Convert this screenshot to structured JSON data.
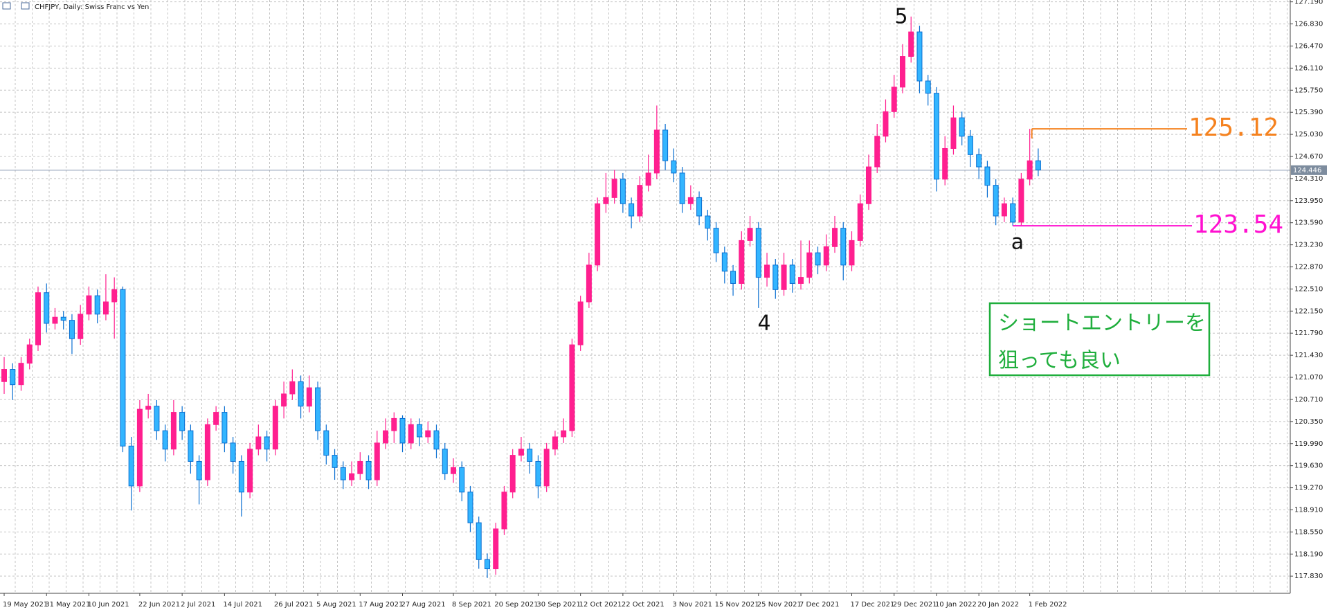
{
  "chart_data": {
    "type": "candlestick",
    "title": "CHFJPY, Daily:  Swiss Franc vs Yen",
    "categories": [
      "19 May 2021",
      null,
      null,
      null,
      null,
      "31 May 2021",
      null,
      null,
      null,
      null,
      "10 Jun 2021",
      null,
      null,
      null,
      null,
      null,
      "22 Jun 2021",
      null,
      null,
      null,
      null,
      "2 Jul 2021",
      null,
      null,
      null,
      null,
      "14 Jul 2021",
      null,
      null,
      null,
      null,
      null,
      "26 Jul 2021",
      null,
      null,
      null,
      null,
      "5 Aug 2021",
      null,
      null,
      null,
      null,
      "17 Aug 2021",
      null,
      null,
      null,
      null,
      "27 Aug 2021",
      null,
      null,
      null,
      null,
      null,
      "8 Sep 2021",
      null,
      null,
      null,
      null,
      "20 Sep 2021",
      null,
      null,
      null,
      null,
      "30 Sep 2021",
      null,
      null,
      null,
      null,
      "12 Oct 2021",
      null,
      null,
      null,
      null,
      "22 Oct 2021",
      null,
      null,
      null,
      null,
      null,
      "3 Nov 2021",
      null,
      null,
      null,
      null,
      "15 Nov 2021",
      null,
      null,
      null,
      null,
      "25 Nov 2021",
      null,
      null,
      null,
      null,
      "7 Dec 2021",
      null,
      null,
      null,
      null,
      null,
      "17 Dec 2021",
      null,
      null,
      null,
      null,
      "29 Dec 2021",
      null,
      null,
      null,
      null,
      "10 Jan 2022",
      null,
      null,
      null,
      null,
      "20 Jan 2022",
      null,
      null,
      null,
      null,
      null,
      "1 Feb 2022",
      null
    ],
    "open": [
      121.0,
      121.2,
      120.95,
      121.3,
      121.6,
      122.45,
      121.95,
      122.05,
      122.0,
      121.7,
      122.1,
      122.4,
      122.1,
      122.3,
      122.5,
      119.95,
      119.3,
      120.55,
      120.6,
      120.2,
      119.9,
      120.5,
      120.2,
      119.7,
      119.4,
      120.3,
      120.5,
      120.0,
      119.7,
      119.2,
      119.9,
      120.1,
      119.9,
      120.6,
      120.8,
      121.0,
      120.6,
      120.9,
      120.2,
      119.8,
      119.6,
      119.4,
      119.5,
      119.7,
      119.4,
      120.0,
      120.2,
      120.4,
      120.0,
      120.3,
      120.1,
      120.2,
      119.9,
      119.5,
      119.6,
      119.2,
      118.7,
      118.1,
      117.95,
      118.6,
      119.2,
      119.8,
      119.9,
      119.7,
      119.3,
      119.9,
      120.1,
      120.2,
      121.6,
      122.3,
      122.9,
      123.9,
      124.0,
      124.3,
      123.9,
      123.7,
      124.2,
      124.4,
      125.1,
      124.6,
      124.4,
      123.9,
      124.0,
      123.7,
      123.5,
      123.1,
      122.8,
      122.6,
      123.3,
      123.5,
      122.7,
      122.9,
      122.5,
      122.9,
      122.6,
      122.7,
      123.1,
      122.9,
      123.2,
      123.5,
      122.9,
      123.3,
      123.9,
      124.5,
      125.0,
      125.4,
      125.8,
      126.3,
      126.7,
      125.9,
      125.7,
      124.3,
      124.8,
      125.3,
      125.0,
      124.7,
      124.5,
      124.2,
      123.7,
      123.9,
      123.6,
      124.3,
      124.6
    ],
    "high": [
      121.4,
      121.3,
      121.4,
      121.7,
      122.55,
      122.6,
      122.2,
      122.15,
      122.1,
      122.25,
      122.55,
      122.5,
      122.75,
      122.7,
      122.55,
      120.1,
      120.7,
      120.8,
      120.7,
      120.3,
      120.7,
      120.6,
      120.3,
      119.8,
      120.4,
      120.6,
      120.6,
      120.1,
      119.8,
      120.0,
      120.3,
      120.2,
      120.7,
      121.0,
      121.2,
      121.1,
      121.1,
      121.0,
      120.3,
      119.9,
      119.7,
      119.7,
      119.85,
      119.8,
      120.2,
      120.4,
      120.5,
      120.45,
      120.4,
      120.4,
      120.35,
      120.3,
      120.0,
      119.75,
      119.7,
      119.3,
      118.8,
      118.2,
      118.7,
      119.3,
      119.9,
      120.1,
      120.0,
      119.8,
      120.0,
      120.2,
      120.4,
      121.7,
      122.4,
      123.1,
      124.0,
      124.4,
      124.45,
      124.4,
      124.0,
      124.35,
      124.7,
      125.5,
      125.2,
      124.8,
      124.5,
      124.2,
      124.1,
      123.8,
      123.6,
      123.2,
      122.9,
      123.45,
      123.7,
      123.6,
      123.1,
      123.0,
      123.1,
      123.0,
      123.3,
      123.3,
      123.2,
      123.4,
      123.7,
      123.6,
      123.45,
      124.05,
      124.7,
      125.2,
      125.6,
      126.0,
      126.5,
      126.95,
      126.8,
      126.0,
      125.8,
      125.0,
      125.5,
      125.4,
      125.1,
      124.8,
      124.6,
      124.3,
      124.0,
      124.0,
      124.4,
      125.12,
      124.8
    ],
    "low": [
      120.8,
      120.7,
      120.85,
      121.2,
      121.5,
      121.8,
      121.85,
      121.85,
      121.45,
      121.6,
      122.0,
      121.95,
      122.0,
      121.7,
      119.85,
      118.9,
      119.2,
      120.4,
      120.05,
      119.7,
      119.8,
      120.05,
      119.5,
      119.0,
      119.3,
      120.2,
      119.85,
      119.5,
      118.8,
      119.1,
      119.8,
      119.7,
      119.8,
      120.4,
      120.7,
      120.4,
      120.5,
      120.05,
      119.65,
      119.4,
      119.25,
      119.3,
      119.4,
      119.25,
      119.3,
      119.9,
      120.0,
      119.85,
      119.9,
      119.95,
      120.0,
      119.75,
      119.4,
      119.35,
      119.05,
      118.55,
      117.95,
      117.8,
      117.85,
      118.5,
      119.1,
      119.7,
      119.5,
      119.1,
      119.2,
      119.8,
      120.0,
      120.1,
      121.5,
      122.2,
      122.8,
      123.75,
      123.9,
      123.75,
      123.5,
      123.6,
      124.1,
      124.3,
      124.45,
      124.25,
      123.75,
      123.8,
      123.55,
      123.3,
      122.95,
      122.6,
      122.4,
      122.5,
      123.2,
      122.2,
      122.55,
      122.35,
      122.4,
      122.45,
      122.5,
      122.6,
      122.75,
      122.8,
      123.1,
      122.65,
      122.8,
      123.2,
      123.8,
      124.4,
      124.9,
      125.3,
      125.7,
      126.2,
      125.7,
      125.5,
      124.1,
      124.2,
      124.7,
      124.85,
      124.5,
      124.3,
      124.0,
      123.55,
      123.6,
      123.54,
      123.55,
      124.2,
      124.35
    ],
    "close": [
      121.2,
      120.95,
      121.3,
      121.6,
      122.45,
      121.95,
      122.05,
      122.0,
      121.7,
      122.1,
      122.4,
      122.1,
      122.3,
      122.5,
      119.95,
      119.3,
      120.55,
      120.6,
      120.2,
      119.9,
      120.5,
      120.2,
      119.7,
      119.4,
      120.3,
      120.5,
      120.0,
      119.7,
      119.2,
      119.9,
      120.1,
      119.9,
      120.6,
      120.8,
      121.0,
      120.6,
      120.9,
      120.2,
      119.8,
      119.6,
      119.4,
      119.5,
      119.7,
      119.4,
      120.0,
      120.2,
      120.4,
      120.0,
      120.3,
      120.1,
      120.2,
      119.9,
      119.5,
      119.6,
      119.2,
      118.7,
      118.1,
      117.95,
      118.6,
      119.2,
      119.8,
      119.9,
      119.7,
      119.3,
      119.9,
      120.1,
      120.2,
      121.6,
      122.3,
      122.9,
      123.9,
      124.0,
      124.3,
      123.9,
      123.7,
      124.2,
      124.4,
      125.1,
      124.6,
      124.4,
      123.9,
      124.0,
      123.7,
      123.5,
      123.1,
      122.8,
      122.6,
      123.3,
      123.5,
      122.7,
      122.9,
      122.5,
      122.9,
      122.6,
      122.7,
      123.1,
      122.9,
      123.2,
      123.5,
      122.9,
      123.3,
      123.9,
      124.5,
      125.0,
      125.4,
      125.8,
      126.3,
      126.7,
      125.9,
      125.7,
      124.3,
      124.8,
      125.3,
      125.0,
      124.7,
      124.5,
      124.2,
      123.7,
      123.9,
      123.6,
      124.3,
      124.6,
      124.45
    ],
    "up_color": "#ff1f8f",
    "down_color": "#33b5ff",
    "down_edge": "#0a6fd1",
    "ylim": [
      117.55,
      127.22
    ],
    "yticks": [
      {
        "value": 117.83,
        "label": "117.830"
      },
      {
        "value": 118.19,
        "label": "118.190"
      },
      {
        "value": 118.55,
        "label": "118.550"
      },
      {
        "value": 118.91,
        "label": "118.910"
      },
      {
        "value": 119.27,
        "label": "119.270"
      },
      {
        "value": 119.63,
        "label": "119.630"
      },
      {
        "value": 119.99,
        "label": "119.990"
      },
      {
        "value": 120.35,
        "label": "120.350"
      },
      {
        "value": 120.71,
        "label": "120.710"
      },
      {
        "value": 121.07,
        "label": "121.070"
      },
      {
        "value": 121.43,
        "label": "121.430"
      },
      {
        "value": 121.79,
        "label": "121.790"
      },
      {
        "value": 122.15,
        "label": "122.150"
      },
      {
        "value": 122.51,
        "label": "122.510"
      },
      {
        "value": 122.87,
        "label": "122.870"
      },
      {
        "value": 123.23,
        "label": "123.230"
      },
      {
        "value": 123.59,
        "label": "123.590"
      },
      {
        "value": 123.95,
        "label": "123.950"
      },
      {
        "value": 124.31,
        "label": "124.310"
      },
      {
        "value": 124.67,
        "label": "124.670"
      },
      {
        "value": 125.03,
        "label": "125.030"
      },
      {
        "value": 125.39,
        "label": "125.390"
      },
      {
        "value": 125.75,
        "label": "125.750"
      },
      {
        "value": 126.11,
        "label": "126.110"
      },
      {
        "value": 126.47,
        "label": "126.470"
      },
      {
        "value": 126.83,
        "label": "126.830"
      },
      {
        "value": 127.19,
        "label": "127.190"
      }
    ],
    "grid": true,
    "current_price": 124.446,
    "levels": [
      {
        "value": 125.12,
        "color": "#f5821f"
      },
      {
        "value": 123.54,
        "color": "#ff10d0"
      }
    ],
    "annotations": [
      "5",
      "4",
      "a"
    ],
    "note": [
      "ショートエントリーを",
      "狙っても良い"
    ],
    "note_color": "#1fae3c"
  }
}
